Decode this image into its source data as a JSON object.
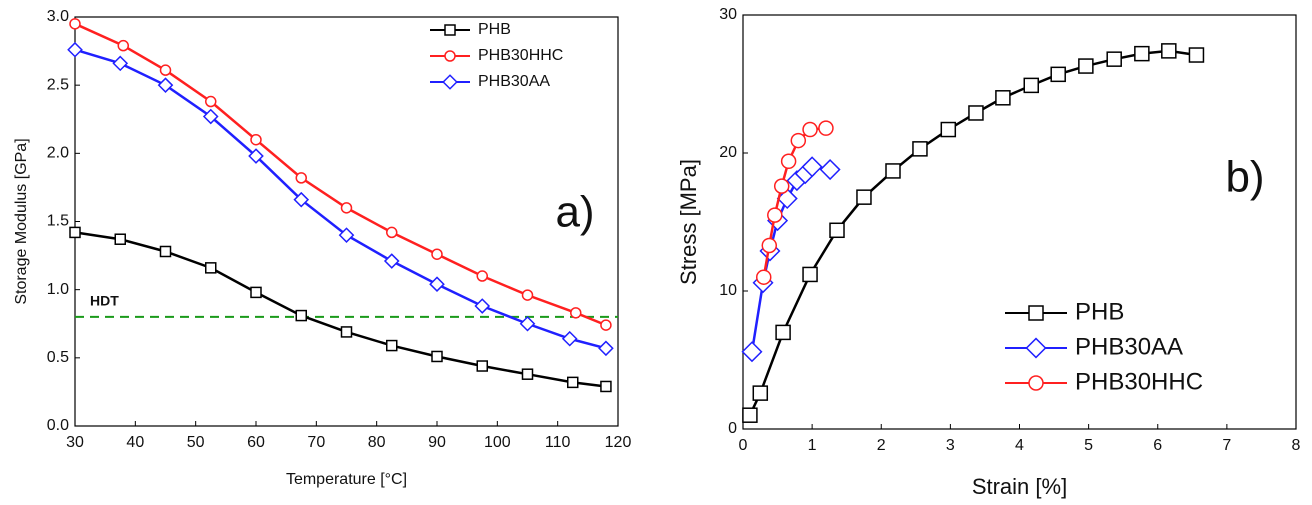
{
  "chart_data": [
    {
      "type": "line",
      "x_label": "Temperature [°C]",
      "y_label": "Storage Modulus [GPa]",
      "panel_label": "a)",
      "xlim": [
        30,
        120
      ],
      "xticks": [
        30,
        40,
        50,
        60,
        70,
        80,
        90,
        100,
        110,
        120
      ],
      "ylim": [
        0,
        3
      ],
      "yticks": [
        {
          "value": 0,
          "label": "0.0"
        },
        0.5,
        {
          "value": 1,
          "label": "1.0"
        },
        1.5,
        {
          "value": 2,
          "label": "2.0"
        },
        2.5,
        {
          "value": 3,
          "label": "3.0"
        }
      ],
      "legend": "upper right",
      "reference_line": {
        "value": 0.8,
        "label": "HDT",
        "color": "#1a9a1a",
        "style": "dashed"
      },
      "series": [
        {
          "name": "PHB",
          "color": "#000000",
          "marker": "square",
          "x": [
            30,
            37.5,
            45,
            52.5,
            60,
            67.5,
            75,
            82.5,
            90,
            97.5,
            105,
            112.5,
            118
          ],
          "values": [
            1.42,
            1.37,
            1.28,
            1.16,
            0.98,
            0.81,
            0.69,
            0.59,
            0.51,
            0.44,
            0.38,
            0.32,
            0.29
          ]
        },
        {
          "name": "PHB30HHC",
          "color": "#ff2020",
          "marker": "circle",
          "x": [
            30,
            38,
            45,
            52.5,
            60,
            67.5,
            75,
            82.5,
            90,
            97.5,
            105,
            113,
            118
          ],
          "values": [
            2.95,
            2.79,
            2.61,
            2.38,
            2.1,
            1.82,
            1.6,
            1.42,
            1.26,
            1.1,
            0.96,
            0.83,
            0.74
          ]
        },
        {
          "name": "PHB30AA",
          "color": "#2020ff",
          "marker": "diamond",
          "x": [
            30,
            37.5,
            45,
            52.5,
            60,
            67.5,
            75,
            82.5,
            90,
            97.5,
            105,
            112,
            118
          ],
          "values": [
            2.76,
            2.66,
            2.5,
            2.27,
            1.98,
            1.66,
            1.4,
            1.21,
            1.04,
            0.88,
            0.75,
            0.64,
            0.57
          ]
        }
      ]
    },
    {
      "type": "line",
      "x_label": "Strain [%]",
      "y_label": "Stress [MPa]",
      "panel_label": "b)",
      "xlim": [
        0,
        8
      ],
      "xticks": [
        0,
        1,
        2,
        3,
        4,
        5,
        6,
        7,
        8
      ],
      "ylim": [
        0,
        30
      ],
      "yticks": [
        0,
        10,
        20,
        30
      ],
      "legend": "lower right",
      "series": [
        {
          "name": "PHB",
          "color": "#000000",
          "marker": "square",
          "x": [
            0.1,
            0.25,
            0.58,
            0.97,
            1.36,
            1.75,
            2.17,
            2.56,
            2.97,
            3.37,
            3.76,
            4.17,
            4.56,
            4.96,
            5.37,
            5.77,
            6.16,
            6.56
          ],
          "values": [
            1.0,
            2.6,
            7.0,
            11.2,
            14.4,
            16.8,
            18.7,
            20.3,
            21.7,
            22.9,
            24.0,
            24.9,
            25.7,
            26.3,
            26.8,
            27.2,
            27.4,
            27.1
          ]
        },
        {
          "name": "PHB30AA",
          "color": "#2020ff",
          "marker": "diamond",
          "x": [
            0.13,
            0.29,
            0.39,
            0.5,
            0.64,
            0.78,
            0.9,
            1.0,
            1.26
          ],
          "values": [
            5.6,
            10.6,
            12.9,
            15.1,
            16.7,
            18.0,
            18.5,
            19.0,
            18.8
          ]
        },
        {
          "name": "PHB30HHC",
          "color": "#ff2020",
          "marker": "circle",
          "x": [
            0.3,
            0.38,
            0.46,
            0.56,
            0.66,
            0.8,
            0.97,
            1.2
          ],
          "values": [
            11.0,
            13.3,
            15.5,
            17.6,
            19.4,
            20.9,
            21.7,
            21.8
          ]
        }
      ]
    }
  ]
}
